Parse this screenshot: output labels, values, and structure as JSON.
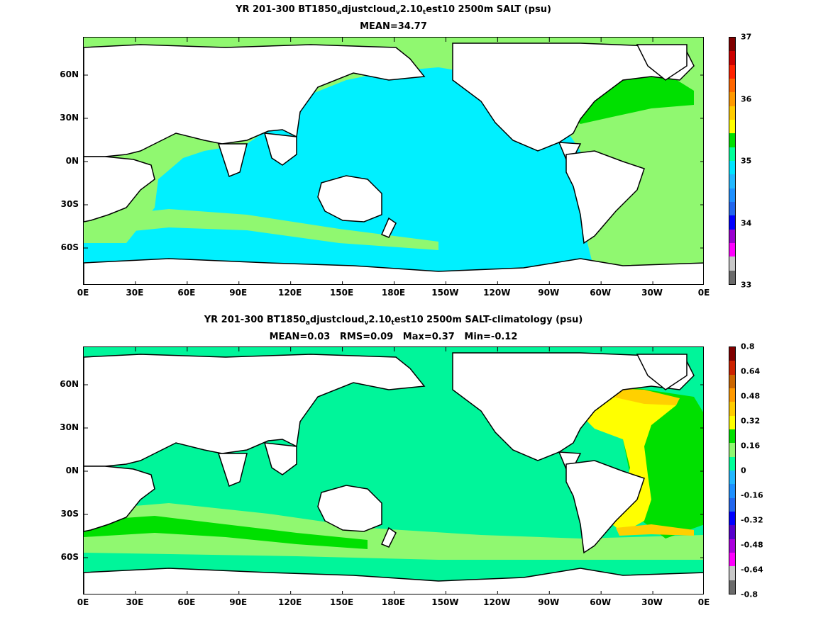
{
  "top": {
    "title_a": "YR 201-300 BT1850",
    "title_s1": "a",
    "title_b": "djustcloud",
    "title_s2": "v",
    "title_c": "2.10",
    "title_s3": "t",
    "title_d": "est10 2500m SALT (psu)",
    "subtitle": "MEAN=34.77",
    "colorbar": {
      "labels": [
        "33",
        "34",
        "35",
        "36",
        "37"
      ],
      "colors": [
        "#6b6b6b",
        "#c8c8c8",
        "#ff00ff",
        "#9a00d0",
        "#0000ff",
        "#2266ee",
        "#1e90ff",
        "#22b8ff",
        "#00e5ff",
        "#00ff99",
        "#00e000",
        "#ffff00",
        "#ffcc00",
        "#ff9900",
        "#ff6600",
        "#ff2200",
        "#cc0000",
        "#800000"
      ]
    }
  },
  "bottom": {
    "title_a": "YR 201-300 BT1850",
    "title_s1": "a",
    "title_b": "djustcloud",
    "title_s2": "v",
    "title_c": "2.10",
    "title_s3": "t",
    "title_d": "est10 2500m SALT-climatology (psu)",
    "subtitle": "MEAN=0.03   RMS=0.09   Max=0.37   Min=-0.12",
    "colorbar": {
      "labels": [
        "-0.8",
        "-0.64",
        "-0.48",
        "-0.32",
        "-0.16",
        "0",
        "0.16",
        "0.32",
        "0.48",
        "0.64",
        "0.8"
      ],
      "colors": [
        "#6b6b6b",
        "#c8c8c8",
        "#ff00ff",
        "#aa00dd",
        "#5500cc",
        "#0000ff",
        "#2266ee",
        "#1e90ff",
        "#22b8ff",
        "#00ff99",
        "#90f870",
        "#00e000",
        "#ffff00",
        "#ffcc00",
        "#ff9900",
        "#cc6600",
        "#cc2200",
        "#800000"
      ]
    }
  },
  "x_ticks": [
    "0E",
    "30E",
    "60E",
    "90E",
    "120E",
    "150E",
    "180E",
    "150W",
    "120W",
    "90W",
    "60W",
    "30W",
    "0E"
  ],
  "y_ticks": [
    "60N",
    "30N",
    "0N",
    "30S",
    "60S"
  ],
  "map_colors": {
    "ocean_top": "#00f0ff",
    "atlantic_top": "#90f870",
    "nadw_top": "#00e000",
    "ocean_bottom": "#00f59a",
    "anom_pos": "#90f870",
    "anom_high": "#00e000",
    "anom_max": "#ffff00",
    "anom_peak": "#ffd000",
    "land": "#ffffff",
    "coast": "#000000"
  }
}
